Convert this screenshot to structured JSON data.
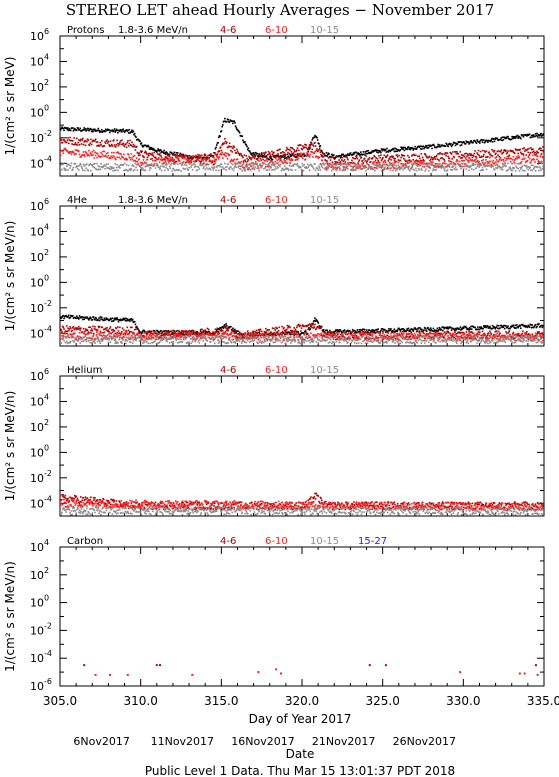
{
  "title": "STEREO LET ahead Hourly Averages − November 2017",
  "footer": {
    "xlabel": "Day of Year 2017",
    "date_ticks": [
      "6Nov2017",
      "11Nov2017",
      "16Nov2017",
      "21Nov2017",
      "26Nov2017"
    ],
    "date_label": "Date",
    "note": "Public Level 1 Data. Thu Mar 15 13:01:37 PDT 2018"
  },
  "colors": {
    "black": "#000000",
    "dark_red": "#b00000",
    "red": "#ff2020",
    "gray": "#8c8c8c",
    "blue": "#1a1aff"
  },
  "chart_data": [
    {
      "type": "scatter",
      "name": "Protons",
      "energy_label": "1.8-3.6 MeV/n",
      "ylabel": "1/(cm² s sr MeV)",
      "yscale": "log",
      "ylim_exp": [
        -5,
        6
      ],
      "yticks": [
        "10⁶",
        "10⁴",
        "10²",
        "10⁰",
        "10⁻²",
        "10⁻⁴"
      ],
      "xlim": [
        305,
        335
      ],
      "series": [
        {
          "name": "1.8-3.6 MeV/n",
          "color": "#000000",
          "baseline": -1.5,
          "noise": 0.15,
          "profile": [
            [
              305,
              -1.3
            ],
            [
              309.5,
              -1.5
            ],
            [
              310,
              -2.5
            ],
            [
              311,
              -3.0
            ],
            [
              313,
              -3.5
            ],
            [
              314.5,
              -3.5
            ],
            [
              315.2,
              -0.6
            ],
            [
              315.8,
              -0.8
            ],
            [
              316.8,
              -3.2
            ],
            [
              318,
              -3.6
            ],
            [
              320.3,
              -3.3
            ],
            [
              320.8,
              -1.7
            ],
            [
              321.3,
              -3.2
            ],
            [
              322,
              -3.5
            ],
            [
              325,
              -3.0
            ],
            [
              328,
              -2.7
            ],
            [
              331,
              -2.3
            ],
            [
              335,
              -1.7
            ]
          ]
        },
        {
          "name": "4-6",
          "color": "#b00000",
          "profile": [
            [
              305,
              -2.2
            ],
            [
              309.5,
              -2.5
            ],
            [
              310,
              -3.3
            ],
            [
              314.5,
              -3.9
            ],
            [
              315.2,
              -2.3
            ],
            [
              316.5,
              -3.7
            ],
            [
              320.8,
              -2.6
            ],
            [
              321.5,
              -3.8
            ],
            [
              328,
              -3.5
            ],
            [
              335,
              -3.0
            ]
          ]
        },
        {
          "name": "6-10",
          "color": "#ff2020",
          "profile": [
            [
              305,
              -3.1
            ],
            [
              309.5,
              -3.5
            ],
            [
              310,
              -4.0
            ],
            [
              315.2,
              -3.4
            ],
            [
              316.5,
              -4.3
            ],
            [
              320.8,
              -3.3
            ],
            [
              321.5,
              -4.3
            ],
            [
              330,
              -4.0
            ],
            [
              335,
              -3.6
            ]
          ]
        },
        {
          "name": "10-15",
          "color": "#8c8c8c",
          "profile": [
            [
              305,
              -4.3
            ],
            [
              335,
              -4.3
            ]
          ]
        }
      ]
    },
    {
      "type": "scatter",
      "name": "4He",
      "energy_label": "1.8-3.6 MeV/n",
      "ylabel": "1/(cm² s sr MeV/n)",
      "yscale": "log",
      "ylim_exp": [
        -5,
        6
      ],
      "yticks": [
        "10⁶",
        "10⁴",
        "10²",
        "10⁰",
        "10⁻²",
        "10⁻⁴"
      ],
      "xlim": [
        305,
        335
      ],
      "series": [
        {
          "name": "1.8-3.6 MeV/n",
          "color": "#000000",
          "profile": [
            [
              305,
              -2.7
            ],
            [
              309.5,
              -3.0
            ],
            [
              310,
              -3.9
            ],
            [
              314.5,
              -4.0
            ],
            [
              315.3,
              -3.4
            ],
            [
              316.2,
              -4.1
            ],
            [
              320.3,
              -4.0
            ],
            [
              320.8,
              -2.9
            ],
            [
              321.4,
              -3.9
            ],
            [
              328,
              -3.7
            ],
            [
              335,
              -3.4
            ]
          ]
        },
        {
          "name": "4-6",
          "color": "#b00000",
          "profile": [
            [
              305,
              -3.7
            ],
            [
              309.5,
              -3.8
            ],
            [
              310,
              -4.2
            ],
            [
              315.3,
              -3.8
            ],
            [
              316.2,
              -4.2
            ],
            [
              320.8,
              -3.4
            ],
            [
              321.5,
              -4.2
            ],
            [
              335,
              -4.1
            ]
          ]
        },
        {
          "name": "6-10",
          "color": "#ff2020",
          "profile": [
            [
              305,
              -4.2
            ],
            [
              335,
              -4.3
            ]
          ]
        },
        {
          "name": "10-15",
          "color": "#8c8c8c",
          "profile": [
            [
              305,
              -4.5
            ],
            [
              335,
              -4.5
            ]
          ]
        }
      ]
    },
    {
      "type": "scatter",
      "name": "Helium",
      "energy_label": "",
      "ylabel": "1/(cm² s sr MeV/n)",
      "yscale": "log",
      "ylim_exp": [
        -5,
        6
      ],
      "yticks": [
        "10⁶",
        "10⁴",
        "10²",
        "10⁰",
        "10⁻²",
        "10⁻⁴"
      ],
      "xlim": [
        305,
        335
      ],
      "series": [
        {
          "name": "4-6",
          "color": "#b00000",
          "profile": [
            [
              305,
              -3.6
            ],
            [
              307,
              -3.8
            ],
            [
              309.5,
              -4.2
            ],
            [
              320.3,
              -4.2
            ],
            [
              320.8,
              -3.4
            ],
            [
              321.5,
              -4.2
            ],
            [
              335,
              -4.2
            ]
          ]
        },
        {
          "name": "6-10",
          "color": "#ff2020",
          "profile": [
            [
              305,
              -4.0
            ],
            [
              335,
              -4.3
            ]
          ]
        },
        {
          "name": "10-15",
          "color": "#8c8c8c",
          "profile": [
            [
              305,
              -4.6
            ],
            [
              335,
              -4.6
            ]
          ]
        }
      ]
    },
    {
      "type": "scatter",
      "name": "Carbon",
      "energy_label": "",
      "ylabel": "1/(cm² s sr MeV/n)",
      "yscale": "log",
      "ylim_exp": [
        -6,
        4
      ],
      "yticks": [
        "10⁴",
        "10²",
        "10⁰",
        "10⁻²",
        "10⁻⁴",
        "10⁻⁶"
      ],
      "xlim": [
        305,
        335
      ],
      "series": [
        {
          "name": "4-6",
          "color": "#b00000",
          "points": [
            [
              306.5,
              -4.5
            ],
            [
              311,
              -4.5
            ],
            [
              311.2,
              -4.5
            ],
            [
              324.2,
              -4.5
            ],
            [
              325.2,
              -4.5
            ],
            [
              334.5,
              -4.5
            ]
          ]
        },
        {
          "name": "6-10",
          "color": "#ff2020",
          "points": [
            [
              307.2,
              -5.2
            ],
            [
              308.1,
              -5.2
            ],
            [
              309.2,
              -5.2
            ],
            [
              313.2,
              -5.2
            ],
            [
              317.3,
              -5.0
            ],
            [
              318.4,
              -4.8
            ],
            [
              318.7,
              -5.1
            ],
            [
              329.8,
              -5.0
            ],
            [
              333.5,
              -5.1
            ],
            [
              333.8,
              -5.1
            ],
            [
              334.6,
              -5.2
            ]
          ]
        },
        {
          "name": "10-15",
          "color": "#8c8c8c",
          "points": []
        },
        {
          "name": "15-27",
          "color": "#1a1aff",
          "points": []
        }
      ]
    }
  ]
}
